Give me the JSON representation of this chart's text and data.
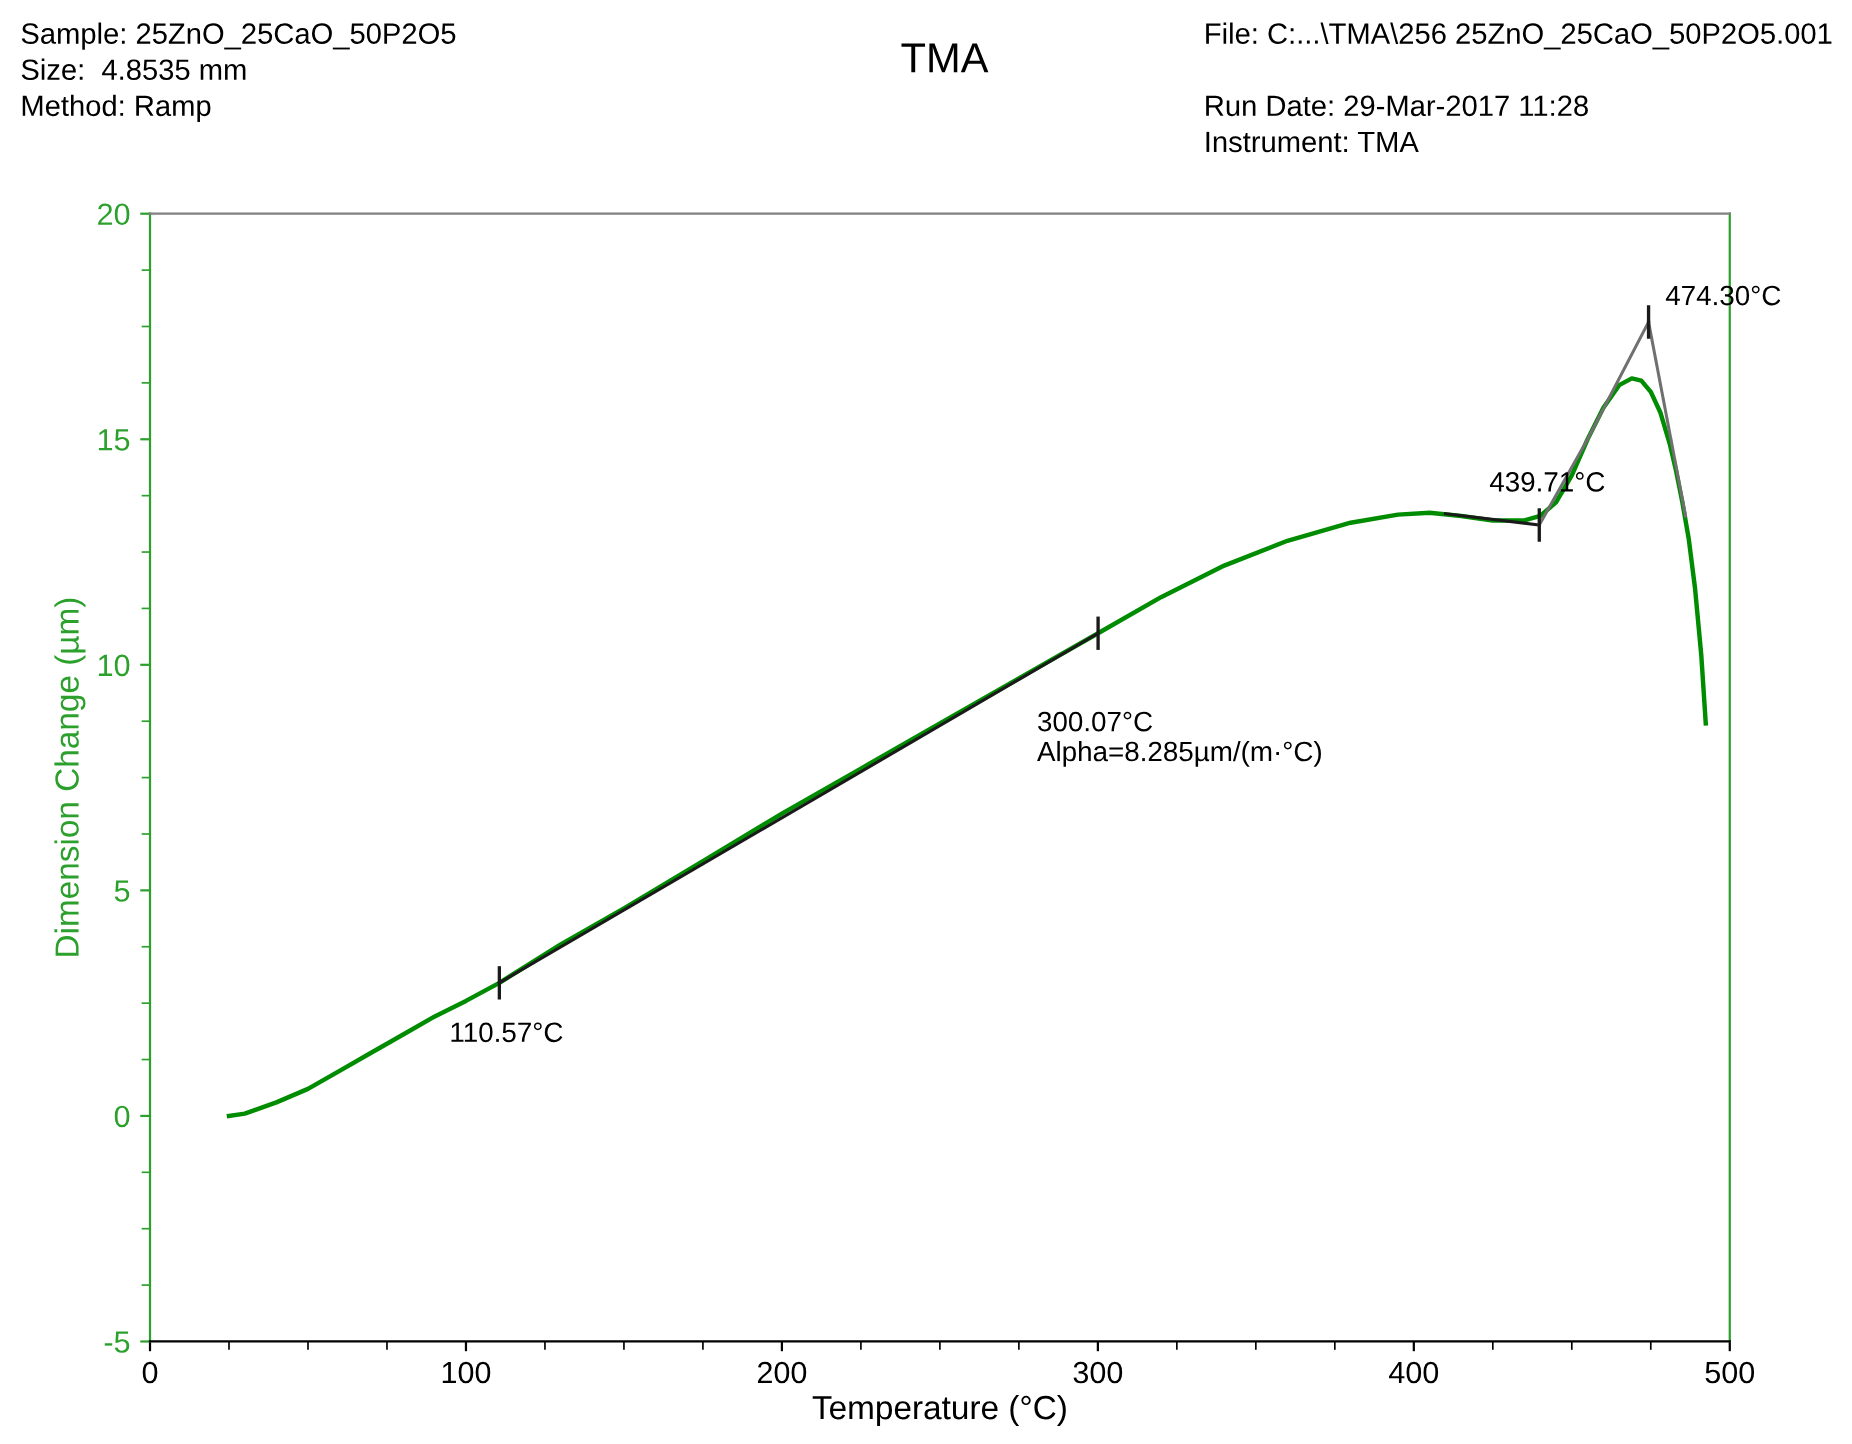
{
  "chart_data": {
    "type": "line",
    "title": "TMA",
    "xlabel": "Temperature (°C)",
    "ylabel": "Dimension Change (µm)",
    "xlim": [
      0,
      500
    ],
    "xticks": [
      0,
      100,
      200,
      300,
      400,
      500
    ],
    "ylim": [
      -5,
      20
    ],
    "yticks": [
      -5,
      0,
      5,
      10,
      15,
      20
    ],
    "grid": false,
    "legend": false,
    "series": [
      {
        "color": "#008c00",
        "x": [
          25,
          30,
          40,
          50,
          60,
          70,
          80,
          90,
          100,
          110.57,
          130,
          150,
          175,
          200,
          225,
          250,
          275,
          300.07,
          320,
          340,
          360,
          380,
          395,
          405,
          415,
          425,
          435,
          440,
          445,
          450,
          455,
          460,
          465,
          469,
          472,
          475,
          478,
          481,
          483,
          485,
          487,
          489,
          491,
          492.4
        ],
        "values": [
          0,
          0.05,
          0.3,
          0.6,
          1.0,
          1.4,
          1.8,
          2.2,
          2.55,
          2.95,
          3.8,
          4.6,
          5.65,
          6.7,
          7.7,
          8.7,
          9.7,
          10.7,
          11.5,
          12.2,
          12.75,
          13.15,
          13.33,
          13.37,
          13.3,
          13.2,
          13.2,
          13.3,
          13.6,
          14.2,
          15.0,
          15.7,
          16.2,
          16.35,
          16.3,
          16.05,
          15.6,
          14.9,
          14.3,
          13.6,
          12.8,
          11.7,
          10.2,
          8.7
        ]
      },
      {
        "color": "#1a1a1a",
        "x": [
          110.57,
          300.07
        ],
        "values": [
          2.95,
          10.7
        ]
      },
      {
        "color": "#1a1a1a",
        "x": [
          410,
          439.71
        ],
        "values": [
          13.35,
          13.1
        ]
      },
      {
        "color": "#707070",
        "x": [
          439.71,
          455,
          474.3
        ],
        "values": [
          13.1,
          15.0,
          17.6
        ]
      },
      {
        "color": "#707070",
        "x": [
          474.3,
          486
        ],
        "values": [
          17.6,
          13.3
        ]
      }
    ],
    "annotations": [
      "Sample: 25ZnO_25CaO_50P2O5",
      "Size:  4.8535 mm",
      "Method: Ramp",
      "File: C:...\\TMA\\256 25ZnO_25CaO_50P2O5.001",
      "Run Date: 29-Mar-2017 11:28",
      "Instrument: TMA",
      {
        "text": "110.57°C",
        "x": 110.57,
        "y": 2.95
      },
      {
        "text": "300.07°C\nAlpha=8.285µm/(m·°C)",
        "x": 300.07,
        "y": 10.7
      },
      {
        "text": "439.71°C",
        "x": 439.71,
        "y": 13.1
      },
      {
        "text": "474.30°C",
        "x": 474.3,
        "y": 17.6
      }
    ]
  }
}
